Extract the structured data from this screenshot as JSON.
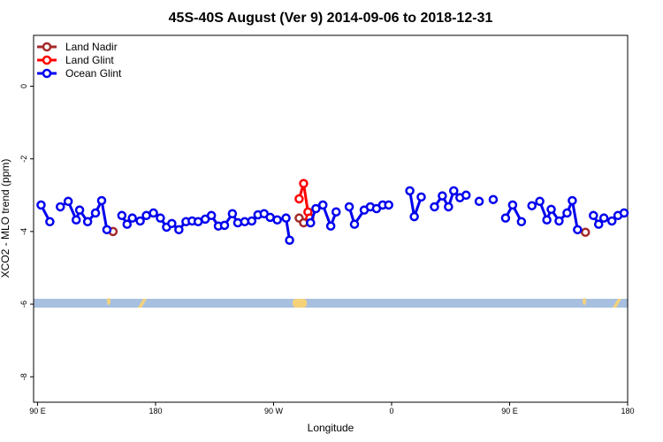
{
  "chart_data": {
    "type": "line",
    "title": "45S-40S August (Ver 9)   2014-09-06 to 2018-12-31",
    "xlabel": "Longitude",
    "ylabel": "XCO2 - MLO trend (ppm)",
    "xlim": [
      87,
      540
    ],
    "ylim": [
      -8.7,
      1.4
    ],
    "xticks": [
      {
        "value": 90,
        "label": "90 E"
      },
      180,
      {
        "value": 270,
        "label": "90 W"
      },
      {
        "value": 360,
        "label": "0"
      },
      {
        "value": 450,
        "label": "90 E"
      },
      {
        "value": 540,
        "label": "180"
      }
    ],
    "yticks": [
      0,
      -2,
      -4,
      -6,
      -8
    ],
    "legend": "top-left",
    "series": [
      {
        "name": "Land Nadir",
        "color": "#a52a2a",
        "x": [
          147.6,
          null,
          289.5,
          292.9,
          null,
          507.8
        ],
        "values": [
          -4.0,
          null,
          -3.63,
          -3.76,
          null,
          -4.02
        ]
      },
      {
        "name": "Land Glint",
        "color": "#ff0000",
        "x": [
          289.5,
          292.9,
          296.2,
          297.6
        ],
        "values": [
          -3.1,
          -2.68,
          -3.46,
          -3.63
        ]
      },
      {
        "name": "Ocean Glint",
        "color": "#0000ee",
        "x": [
          92.7,
          99.4,
          null,
          107.4,
          113.4,
          119.5,
          122.1,
          128.2,
          134.2,
          138.9,
          142.9,
          null,
          154.3,
          158.3,
          162.3,
          168.3,
          173.0,
          178.4,
          183.7,
          188.4,
          192.4,
          197.8,
          203.2,
          207.9,
          212.5,
          217.9,
          222.6,
          227.9,
          232.6,
          238.6,
          242.7,
          248.0,
          253.4,
          258.1,
          262.8,
          267.4,
          272.8,
          279.5,
          282.2,
          null,
          298.2,
          302.3,
          307.6,
          313.6,
          317.7,
          null,
          327.7,
          331.7,
          339.1,
          343.8,
          348.5,
          353.2,
          357.8,
          null,
          373.9,
          377.3,
          382.6,
          null,
          392.7,
          398.7,
          403.4,
          407.4,
          412.1,
          416.8,
          null,
          426.8,
          null,
          437.5,
          null,
          446.9,
          452.3,
          459.0,
          null,
          467.0,
          473.0,
          478.4,
          481.7,
          487.7,
          493.8,
          497.8,
          501.8,
          null,
          513.9,
          517.9,
          521.9,
          528.0,
          532.6,
          537.3
        ],
        "values": [
          -3.27,
          -3.73,
          null,
          -3.32,
          -3.17,
          -3.68,
          -3.41,
          -3.73,
          -3.49,
          -3.15,
          -3.95,
          null,
          -3.56,
          -3.8,
          -3.63,
          -3.71,
          -3.56,
          -3.49,
          -3.63,
          -3.88,
          -3.78,
          -3.95,
          -3.73,
          -3.71,
          -3.73,
          -3.66,
          -3.56,
          -3.85,
          -3.83,
          -3.51,
          -3.76,
          -3.73,
          -3.71,
          -3.54,
          -3.51,
          -3.61,
          -3.68,
          -3.63,
          -4.24,
          null,
          -3.76,
          -3.37,
          -3.27,
          -3.85,
          -3.46,
          null,
          -3.32,
          -3.8,
          -3.41,
          -3.32,
          -3.37,
          -3.27,
          -3.27,
          null,
          -2.88,
          -3.59,
          -3.05,
          null,
          -3.32,
          -3.02,
          -3.32,
          -2.88,
          -3.07,
          -3.0,
          null,
          -3.17,
          null,
          -3.12,
          null,
          -3.63,
          -3.27,
          -3.73,
          null,
          -3.29,
          -3.17,
          -3.68,
          -3.39,
          -3.71,
          -3.49,
          -3.15,
          -3.95,
          null,
          -3.56,
          -3.8,
          -3.63,
          -3.71,
          -3.56,
          -3.49
        ]
      }
    ]
  }
}
